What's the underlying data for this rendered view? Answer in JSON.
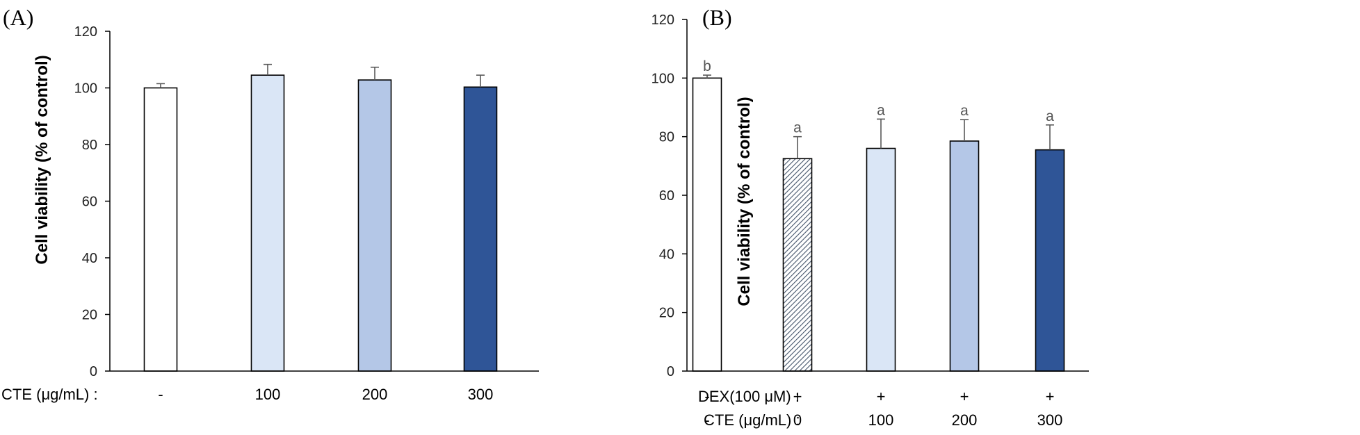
{
  "colors": {
    "white": "#ffffff",
    "light_blue": "#dae6f6",
    "mid_blue": "#b4c7e7",
    "dark_blue": "#2f5597",
    "hatch": "#44546a",
    "axis": "#000000"
  },
  "chart_data": [
    {
      "type": "bar",
      "panel_label": "(A)",
      "ylabel": "Cell viability (% of control)",
      "ylim": [
        0,
        120
      ],
      "yticks": [
        "0",
        "20",
        "40",
        "60",
        "80",
        "100",
        "120"
      ],
      "row_labels": [
        "CTE (μg/mL) :"
      ],
      "rows": [
        [
          "-",
          "100",
          "200",
          "300"
        ]
      ],
      "values": [
        100,
        104.5,
        102.8,
        100.3
      ],
      "errors": [
        1.5,
        3.8,
        4.5,
        4.2
      ],
      "sig": [
        "",
        "",
        "",
        ""
      ],
      "fills": [
        "white",
        "light_blue",
        "mid_blue",
        "dark_blue"
      ]
    },
    {
      "type": "bar",
      "panel_label": "(B)",
      "ylabel": "Cell viability (% of control)",
      "ylim": [
        0,
        120
      ],
      "yticks": [
        "0",
        "20",
        "40",
        "60",
        "80",
        "100",
        "120"
      ],
      "row_labels": [
        "DEX(100 μM) :",
        "CTE (μg/mL) :"
      ],
      "rows": [
        [
          "-",
          "+",
          "+",
          "+",
          "+"
        ],
        [
          "-",
          "0",
          "100",
          "200",
          "300"
        ]
      ],
      "values": [
        100,
        72.5,
        76,
        78.5,
        75.5
      ],
      "errors": [
        1,
        7.5,
        10,
        7.3,
        8.5
      ],
      "sig": [
        "b",
        "a",
        "a",
        "a",
        "a"
      ],
      "fills": [
        "white",
        "hatch",
        "light_blue",
        "mid_blue",
        "dark_blue"
      ]
    }
  ]
}
